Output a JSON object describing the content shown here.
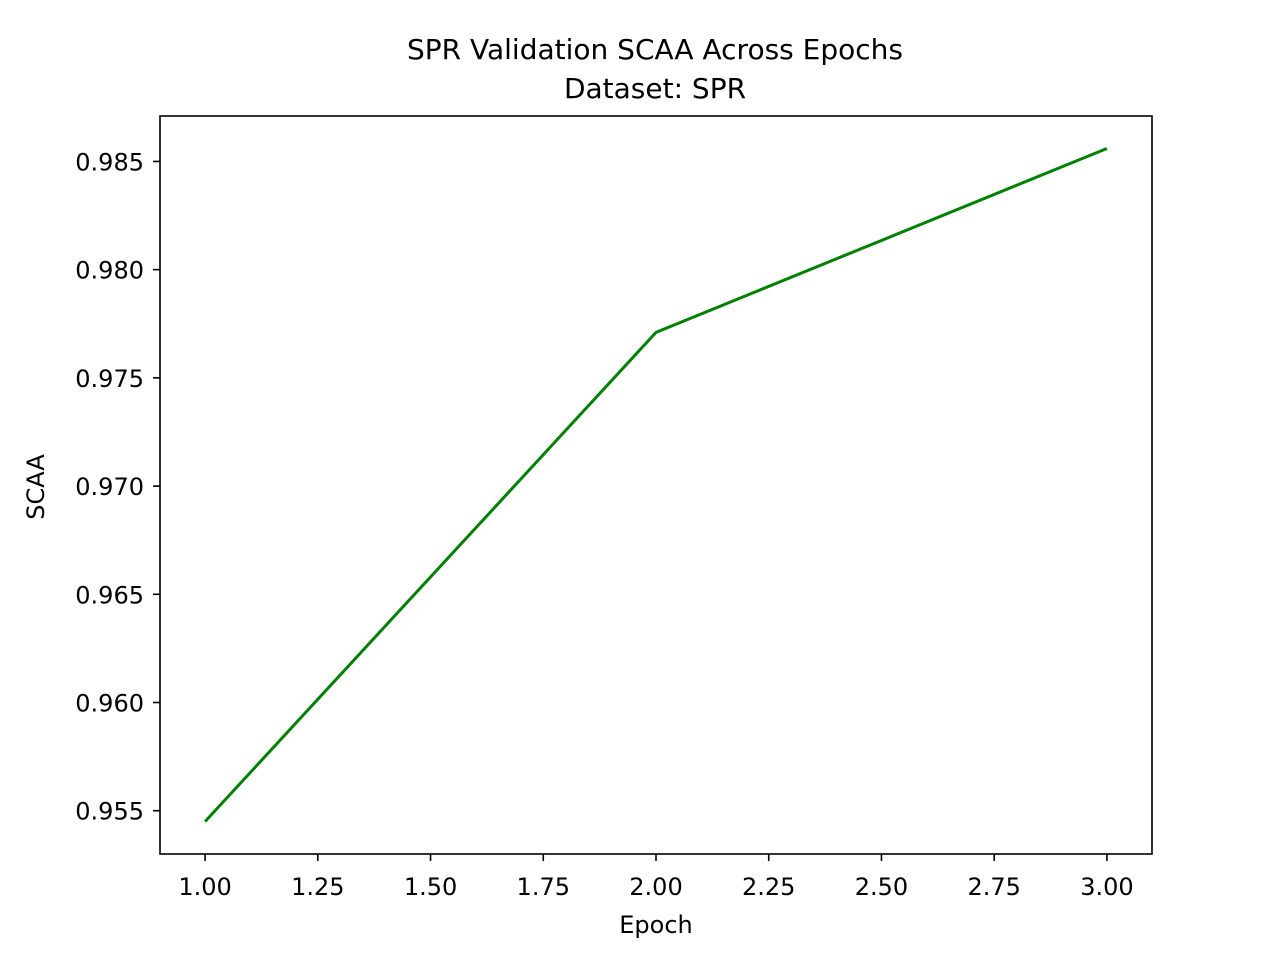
{
  "chart_data": {
    "type": "line",
    "title": "SPR Validation SCAA Across Epochs",
    "subtitle": "Dataset: SPR",
    "xlabel": "Epoch",
    "ylabel": "SCAA",
    "x": [
      1.0,
      2.0,
      3.0
    ],
    "series": [
      {
        "values": [
          0.9545,
          0.9771,
          0.9856
        ],
        "color": "#008000"
      }
    ],
    "xlim": [
      0.9,
      3.1
    ],
    "ylim": [
      0.953,
      0.9871
    ],
    "xticks": [
      "1.00",
      "1.25",
      "1.50",
      "1.75",
      "2.00",
      "2.25",
      "2.50",
      "2.75",
      "3.00"
    ],
    "yticks": [
      "0.955",
      "0.960",
      "0.965",
      "0.970",
      "0.975",
      "0.980",
      "0.985"
    ],
    "grid": false,
    "legend": "none"
  }
}
